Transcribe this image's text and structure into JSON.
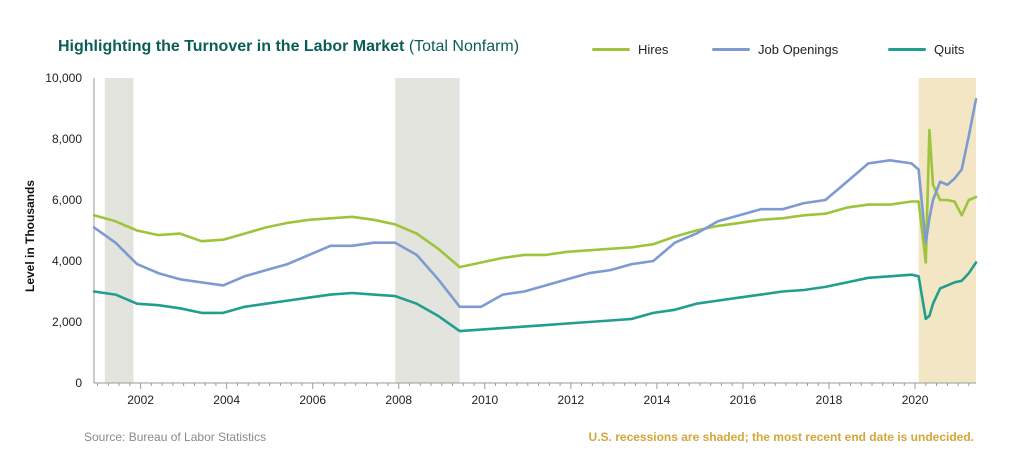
{
  "chart_data": {
    "type": "line",
    "title": "Highlighting the Turnover in the Labor Market",
    "subtitle": "(Total Nonfarm)",
    "ylabel": "Level in Thousands",
    "xlabel": "",
    "xlim": [
      "2000-12",
      "2021-06"
    ],
    "ylim": [
      0,
      10000
    ],
    "yticks": [
      0,
      2000,
      4000,
      6000,
      8000,
      10000
    ],
    "ytick_labels": [
      "0",
      "2,000",
      "4,000",
      "6,000",
      "8,000",
      "10,000"
    ],
    "xticks": [
      2002,
      2004,
      2006,
      2008,
      2010,
      2012,
      2014,
      2016,
      2018,
      2020
    ],
    "xtick_labels": [
      "2002",
      "2004",
      "2006",
      "2008",
      "2010",
      "2012",
      "2014",
      "2016",
      "2018",
      "2020"
    ],
    "grid": false,
    "legend_position": "top",
    "recessions": [
      {
        "start": "2001-03",
        "end": "2001-11"
      },
      {
        "start": "2007-12",
        "end": "2009-06"
      },
      {
        "start": "2020-02",
        "end": "2021-06",
        "ongoing": true
      }
    ],
    "series": [
      {
        "name": "Hires",
        "color": "#9dc43c",
        "x": [
          "2000-12",
          "2001-06",
          "2001-12",
          "2002-06",
          "2002-12",
          "2003-06",
          "2003-12",
          "2004-06",
          "2004-12",
          "2005-06",
          "2005-12",
          "2006-06",
          "2006-12",
          "2007-06",
          "2007-12",
          "2008-06",
          "2008-12",
          "2009-06",
          "2009-12",
          "2010-06",
          "2010-12",
          "2011-06",
          "2011-12",
          "2012-06",
          "2012-12",
          "2013-06",
          "2013-12",
          "2014-06",
          "2014-12",
          "2015-06",
          "2015-12",
          "2016-06",
          "2016-12",
          "2017-06",
          "2017-12",
          "2018-06",
          "2018-12",
          "2019-06",
          "2019-12",
          "2020-02",
          "2020-04",
          "2020-05",
          "2020-06",
          "2020-08",
          "2020-10",
          "2020-12",
          "2021-02",
          "2021-04",
          "2021-06"
        ],
        "values": [
          5500,
          5300,
          5000,
          4850,
          4900,
          4650,
          4700,
          4900,
          5100,
          5250,
          5350,
          5400,
          5450,
          5350,
          5200,
          4900,
          4400,
          3800,
          3950,
          4100,
          4200,
          4200,
          4300,
          4350,
          4400,
          4450,
          4550,
          4800,
          5000,
          5150,
          5250,
          5350,
          5400,
          5500,
          5550,
          5750,
          5850,
          5850,
          5950,
          5950,
          3950,
          8300,
          6500,
          6000,
          6000,
          5950,
          5500,
          6000,
          6100
        ]
      },
      {
        "name": "Job Openings",
        "color": "#7d9bd1",
        "x": [
          "2000-12",
          "2001-06",
          "2001-12",
          "2002-06",
          "2002-12",
          "2003-06",
          "2003-12",
          "2004-06",
          "2004-12",
          "2005-06",
          "2005-12",
          "2006-06",
          "2006-12",
          "2007-06",
          "2007-12",
          "2008-06",
          "2008-12",
          "2009-06",
          "2009-12",
          "2010-06",
          "2010-12",
          "2011-06",
          "2011-12",
          "2012-06",
          "2012-12",
          "2013-06",
          "2013-12",
          "2014-06",
          "2014-12",
          "2015-06",
          "2015-12",
          "2016-06",
          "2016-12",
          "2017-06",
          "2017-12",
          "2018-06",
          "2018-12",
          "2019-06",
          "2019-12",
          "2020-02",
          "2020-04",
          "2020-05",
          "2020-06",
          "2020-08",
          "2020-10",
          "2020-12",
          "2021-02",
          "2021-04",
          "2021-06"
        ],
        "values": [
          5100,
          4600,
          3900,
          3600,
          3400,
          3300,
          3200,
          3500,
          3700,
          3900,
          4200,
          4500,
          4500,
          4600,
          4600,
          4200,
          3400,
          2500,
          2500,
          2900,
          3000,
          3200,
          3400,
          3600,
          3700,
          3900,
          4000,
          4600,
          4900,
          5300,
          5500,
          5700,
          5700,
          5900,
          6000,
          6600,
          7200,
          7300,
          7200,
          7000,
          4600,
          5400,
          6000,
          6600,
          6500,
          6700,
          7000,
          8100,
          9300
        ]
      },
      {
        "name": "Quits",
        "color": "#229e8f",
        "x": [
          "2000-12",
          "2001-06",
          "2001-12",
          "2002-06",
          "2002-12",
          "2003-06",
          "2003-12",
          "2004-06",
          "2004-12",
          "2005-06",
          "2005-12",
          "2006-06",
          "2006-12",
          "2007-06",
          "2007-12",
          "2008-06",
          "2008-12",
          "2009-06",
          "2009-12",
          "2010-06",
          "2010-12",
          "2011-06",
          "2011-12",
          "2012-06",
          "2012-12",
          "2013-06",
          "2013-12",
          "2014-06",
          "2014-12",
          "2015-06",
          "2015-12",
          "2016-06",
          "2016-12",
          "2017-06",
          "2017-12",
          "2018-06",
          "2018-12",
          "2019-06",
          "2019-12",
          "2020-02",
          "2020-04",
          "2020-05",
          "2020-06",
          "2020-08",
          "2020-10",
          "2020-12",
          "2021-02",
          "2021-04",
          "2021-06"
        ],
        "values": [
          3000,
          2900,
          2600,
          2550,
          2450,
          2300,
          2300,
          2500,
          2600,
          2700,
          2800,
          2900,
          2950,
          2900,
          2850,
          2600,
          2200,
          1700,
          1750,
          1800,
          1850,
          1900,
          1950,
          2000,
          2050,
          2100,
          2300,
          2400,
          2600,
          2700,
          2800,
          2900,
          3000,
          3050,
          3150,
          3300,
          3450,
          3500,
          3550,
          3500,
          2100,
          2200,
          2600,
          3100,
          3200,
          3300,
          3350,
          3600,
          3950
        ]
      }
    ]
  },
  "source": "Source: Bureau of Labor Statistics",
  "footnote": "U.S. recessions are shaded; the most recent end date is undecided."
}
